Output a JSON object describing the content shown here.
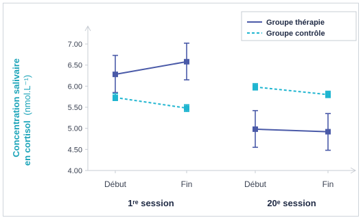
{
  "chart_data": {
    "type": "line",
    "ylabel_line1": "Concentration salivaire",
    "ylabel_line2": "en cortisol",
    "ylabel_unit": "(nmol.L⁻¹)",
    "ylim": [
      4.0,
      7.0
    ],
    "yticks": [
      "4.00",
      "4.50",
      "5.00",
      "5.50",
      "6.00",
      "6.50",
      "7.00"
    ],
    "ytick_values": [
      4.0,
      4.5,
      5.0,
      5.5,
      6.0,
      6.5,
      7.0
    ],
    "categories": [
      "Début",
      "Fin",
      "Début",
      "Fin"
    ],
    "groups": [
      {
        "label": "1ʳᵉ session",
        "categories": [
          0,
          1
        ]
      },
      {
        "label": "20ᵉ session",
        "categories": [
          2,
          3
        ]
      }
    ],
    "legend_position": "top-right",
    "series": [
      {
        "name": "Groupe thérapie",
        "color": "#4a5aa8",
        "style": "solid",
        "segments": [
          {
            "points": [
              {
                "cat": 0,
                "y": 6.28,
                "low": 5.85,
                "high": 6.73
              },
              {
                "cat": 1,
                "y": 6.58,
                "low": 6.15,
                "high": 7.02
              }
            ]
          },
          {
            "points": [
              {
                "cat": 2,
                "y": 4.98,
                "low": 4.55,
                "high": 5.42
              },
              {
                "cat": 3,
                "y": 4.92,
                "low": 4.48,
                "high": 5.35
              }
            ]
          }
        ]
      },
      {
        "name": "Groupe contrôle",
        "color": "#1fb5d0",
        "style": "dashed",
        "segments": [
          {
            "points": [
              {
                "cat": 0,
                "y": 5.73,
                "low": 5.66,
                "high": 5.82
              },
              {
                "cat": 1,
                "y": 5.48,
                "low": 5.4,
                "high": 5.56
              }
            ]
          },
          {
            "points": [
              {
                "cat": 2,
                "y": 5.98,
                "low": 5.91,
                "high": 6.06
              },
              {
                "cat": 3,
                "y": 5.8,
                "low": 5.73,
                "high": 5.88
              }
            ]
          }
        ]
      }
    ]
  }
}
